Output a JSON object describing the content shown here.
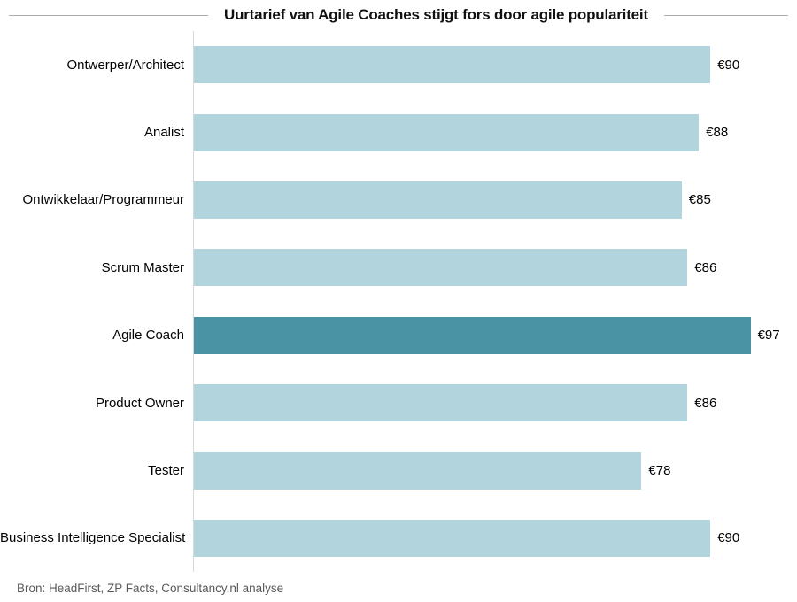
{
  "title": "Uurtarief van Agile Coaches stijgt fors door agile populariteit",
  "source": "Bron: HeadFirst, ZP Facts, Consultancy.nl analyse",
  "colors": {
    "bar_default": "#b2d5dd",
    "bar_highlight": "#4a93a4",
    "axis_line": "#d8d8d8",
    "title_rule": "#ababab",
    "source_text": "#595959"
  },
  "chart_data": {
    "type": "bar",
    "orientation": "horizontal",
    "title": "Uurtarief van Agile Coaches stijgt fors door agile populariteit",
    "categories": [
      "Ontwerper/Architect",
      "Analist",
      "Ontwikkelaar/Programmeur",
      "Scrum Master",
      "Agile Coach",
      "Product Owner",
      "Tester",
      "Business Intelligence Specialist"
    ],
    "values": [
      90,
      88,
      85,
      86,
      97,
      86,
      78,
      90
    ],
    "value_labels": [
      "€90",
      "€88",
      "€85",
      "€86",
      "€97",
      "€86",
      "€78",
      "€90"
    ],
    "value_prefix": "€",
    "highlight_index": 4,
    "highlight_category": "Agile Coach",
    "xlabel": "",
    "ylabel": "",
    "xlim": [
      0,
      100
    ],
    "grid": false,
    "legend": false,
    "data_labels": "outside-end"
  }
}
